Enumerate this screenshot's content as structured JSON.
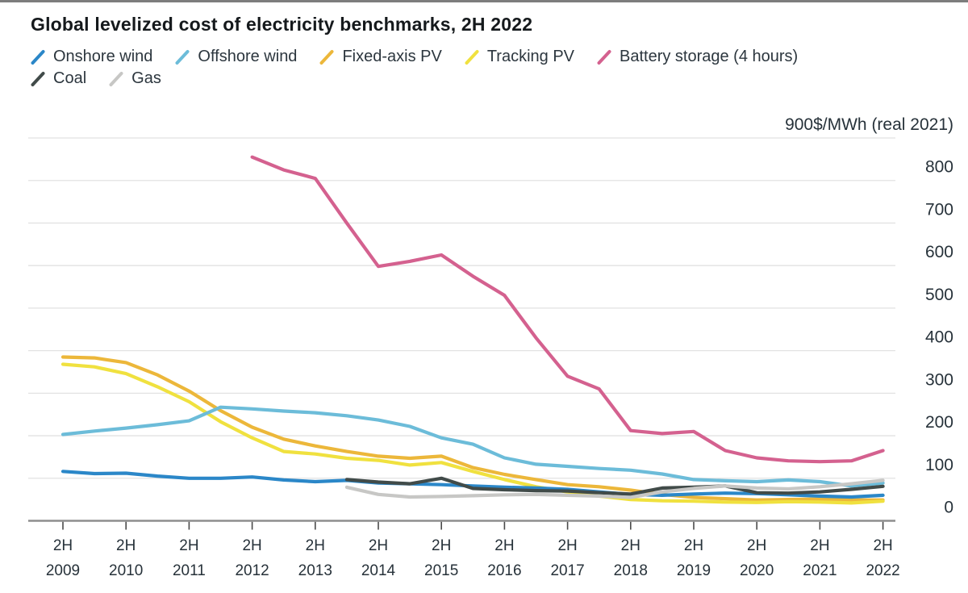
{
  "chart_data": {
    "type": "line",
    "title": "Global levelized cost of electricity benchmarks, 2H 2022",
    "y_axis": {
      "unit_suffix": "$/MWh (real 2021)",
      "top_tick_label": "900$/MWh (real 2021)",
      "ylim": [
        0,
        900
      ],
      "tick_step": 100,
      "grid": true
    },
    "x_axis": {
      "tick_labels": [
        "2H 2009",
        "2H 2010",
        "2H 2011",
        "2H 2012",
        "2H 2013",
        "2H 2014",
        "2H 2015",
        "2H 2016",
        "2H 2017",
        "2H 2018",
        "2H 2019",
        "2H 2020",
        "2H 2021",
        "2H 2022"
      ],
      "x_start": 2009.5,
      "x_end": 2022.5,
      "point_step_years": 0.5
    },
    "legend_position": "top-left",
    "series": [
      {
        "name": "Onshore wind",
        "color": "#2b87c8",
        "x_start": 2009.5,
        "values": [
          116,
          111,
          112,
          105,
          100,
          100,
          103,
          96,
          92,
          95,
          89,
          87,
          85,
          82,
          79,
          77,
          74,
          68,
          62,
          60,
          63,
          65,
          64,
          61,
          58,
          56,
          60
        ]
      },
      {
        "name": "Offshore wind",
        "color": "#6cbcd9",
        "x_start": 2009.5,
        "values": [
          203,
          211,
          218,
          226,
          235,
          267,
          263,
          258,
          254,
          247,
          237,
          222,
          195,
          180,
          148,
          133,
          128,
          123,
          119,
          110,
          97,
          94,
          92,
          96,
          92,
          82,
          89
        ]
      },
      {
        "name": "Fixed-axis PV",
        "color": "#ecb73a",
        "x_start": 2009.5,
        "values": [
          385,
          383,
          372,
          343,
          305,
          259,
          220,
          192,
          176,
          163,
          152,
          147,
          152,
          125,
          109,
          97,
          85,
          80,
          72,
          62,
          55,
          52,
          49,
          50,
          51,
          49,
          49
        ]
      },
      {
        "name": "Tracking PV",
        "color": "#f0e13f",
        "x_start": 2009.5,
        "values": [
          368,
          362,
          346,
          315,
          280,
          233,
          195,
          163,
          157,
          147,
          142,
          131,
          137,
          116,
          97,
          80,
          68,
          58,
          50,
          47,
          46,
          44,
          43,
          45,
          44,
          42,
          46
        ]
      },
      {
        "name": "Battery storage (4 hours)",
        "color": "#d4618f",
        "x_start": 2012.5,
        "values": [
          855,
          825,
          805,
          700,
          598,
          610,
          625,
          575,
          530,
          430,
          340,
          310,
          212,
          205,
          210,
          165,
          148,
          141,
          139,
          141,
          165
        ]
      },
      {
        "name": "Coal",
        "color": "#414b49",
        "x_start": 2014.0,
        "values": [
          97,
          91,
          87,
          100,
          76,
          73,
          71,
          70,
          66,
          63,
          77,
          79,
          82,
          66,
          65,
          68,
          74,
          81
        ]
      },
      {
        "name": "Gas",
        "color": "#c7c7c5",
        "x_start": 2014.0,
        "values": [
          79,
          62,
          56,
          57,
          59,
          61,
          62,
          60,
          58,
          55,
          68,
          76,
          82,
          77,
          75,
          80,
          87,
          95
        ]
      }
    ],
    "colors": {
      "grid": "#e2e2e2",
      "axis": "#8d8d8d",
      "tick": "#4a4a4a",
      "axis_text": "#27323a"
    }
  }
}
